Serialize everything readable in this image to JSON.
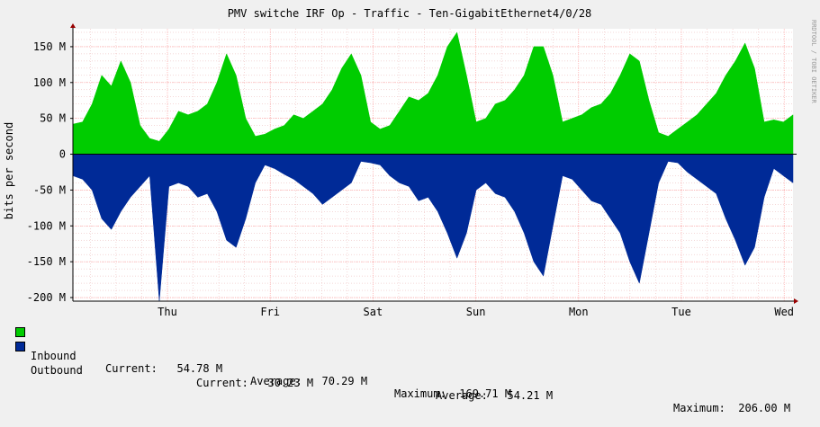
{
  "chart_data": {
    "type": "area",
    "title": "PMV switche IRF Op - Traffic - Ten-GigabitEthernet4/0/28",
    "ylabel": "bits per second",
    "watermark": "RRDTOOL / TOBI OETIKER",
    "ylim": [
      -205,
      175
    ],
    "y_unit_suffix": "M",
    "y_ticks": [
      "150 M",
      "100 M",
      "50 M",
      "0",
      "-50 M",
      "-100 M",
      "-150 M",
      "-200 M"
    ],
    "y_tick_values": [
      150,
      100,
      50,
      0,
      -50,
      -100,
      -150,
      -200
    ],
    "x_ticks": [
      "Thu",
      "Fri",
      "Sat",
      "Sun",
      "Mon",
      "Tue",
      "Wed"
    ],
    "grid": true,
    "colors": {
      "inbound": "#00cc00",
      "outbound": "#002a97",
      "grid_major": "#ff9999",
      "grid_minor": "#e8b0b0",
      "background": "#f0f0f0",
      "plot": "#ffffff"
    },
    "series": [
      {
        "name": "Inbound",
        "direction": "up",
        "values": [
          42,
          45,
          70,
          110,
          95,
          130,
          100,
          40,
          22,
          18,
          35,
          60,
          55,
          60,
          70,
          100,
          140,
          110,
          50,
          25,
          28,
          35,
          40,
          55,
          50,
          60,
          70,
          90,
          120,
          140,
          110,
          45,
          35,
          40,
          60,
          80,
          75,
          85,
          110,
          150,
          170,
          110,
          45,
          50,
          70,
          75,
          90,
          110,
          150,
          150,
          110,
          45,
          50,
          55,
          65,
          70,
          85,
          110,
          140,
          130,
          75,
          30,
          25,
          35,
          45,
          55,
          70,
          85,
          110,
          130,
          155,
          120,
          45,
          48,
          45,
          55
        ]
      },
      {
        "name": "Outbound",
        "direction": "down",
        "values": [
          30,
          35,
          50,
          90,
          105,
          80,
          60,
          45,
          30,
          205,
          45,
          40,
          45,
          60,
          55,
          80,
          120,
          130,
          90,
          40,
          15,
          20,
          28,
          35,
          45,
          55,
          70,
          60,
          50,
          40,
          10,
          12,
          15,
          30,
          40,
          45,
          65,
          60,
          80,
          110,
          145,
          110,
          50,
          40,
          55,
          60,
          80,
          110,
          150,
          170,
          100,
          30,
          35,
          50,
          65,
          70,
          90,
          110,
          150,
          180,
          110,
          40,
          10,
          12,
          25,
          35,
          45,
          55,
          90,
          120,
          155,
          130,
          60,
          20,
          30,
          40
        ]
      }
    ]
  },
  "legend": {
    "inbound": {
      "label": "Inbound",
      "current": "Current:   54.78 M",
      "average": "Average:   70.29 M",
      "maximum": "Maximum:  169.71 M"
    },
    "outbound": {
      "label": "Outbound",
      "current": "Current:   30.23 M",
      "average": "Average:   54.21 M",
      "maximum": "Maximum:  206.00 M"
    }
  }
}
